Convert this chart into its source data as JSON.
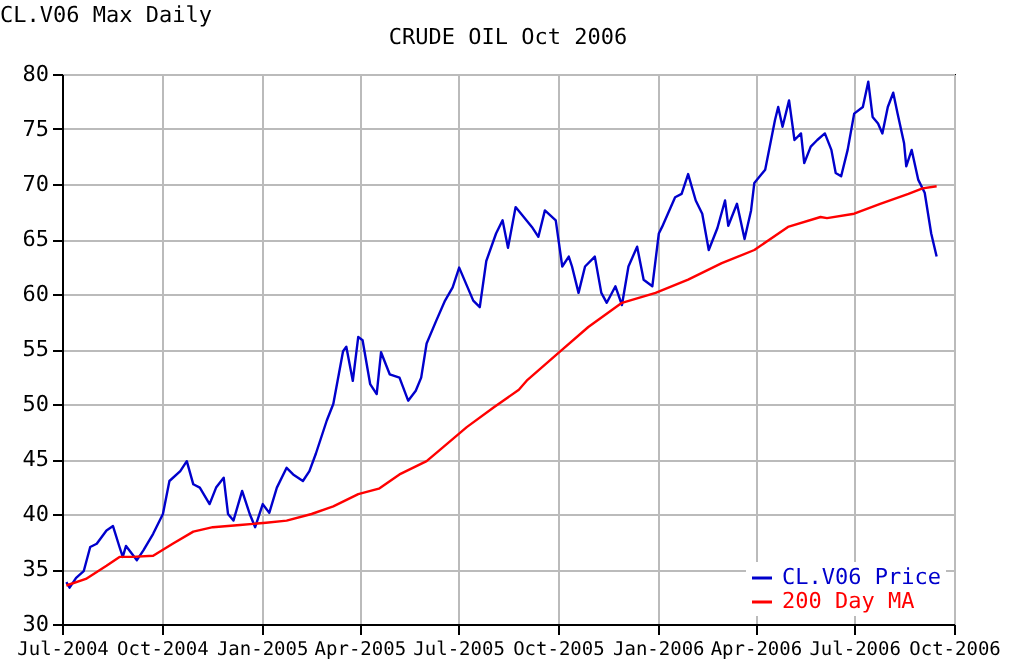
{
  "chart_data": {
    "type": "line",
    "title": "CRUDE OIL Oct 2006",
    "annotations": [
      "CL.V06 Max Daily"
    ],
    "xlim": [
      "2004-07-01",
      "2006-10-01"
    ],
    "xticks": [
      {
        "value": "2004-07-01",
        "label": "Jul-2004"
      },
      {
        "value": "2004-10-01",
        "label": "Oct-2004"
      },
      {
        "value": "2005-01-01",
        "label": "Jan-2005"
      },
      {
        "value": "2005-04-01",
        "label": "Apr-2005"
      },
      {
        "value": "2005-07-01",
        "label": "Jul-2005"
      },
      {
        "value": "2005-10-01",
        "label": "Oct-2005"
      },
      {
        "value": "2006-01-01",
        "label": "Jan-2006"
      },
      {
        "value": "2006-04-01",
        "label": "Apr-2006"
      },
      {
        "value": "2006-07-01",
        "label": "Jul-2006"
      },
      {
        "value": "2006-10-01",
        "label": "Oct-2006"
      }
    ],
    "ylim": [
      30,
      80
    ],
    "yticks": [
      30,
      35,
      40,
      45,
      50,
      55,
      60,
      65,
      70,
      75,
      80
    ],
    "grid": true,
    "legend": "bottom right",
    "series": [
      {
        "name": "CL.V06 Price",
        "color": "#0000cc",
        "x": [
          "2004-07-05",
          "2004-07-08",
          "2004-07-14",
          "2004-07-21",
          "2004-07-27",
          "2004-08-02",
          "2004-08-11",
          "2004-08-17",
          "2004-08-23",
          "2004-08-26",
          "2004-08-29",
          "2004-09-08",
          "2004-09-14",
          "2004-09-23",
          "2004-10-02",
          "2004-10-08",
          "2004-10-18",
          "2004-10-24",
          "2004-10-30",
          "2004-11-05",
          "2004-11-14",
          "2004-11-20",
          "2004-11-27",
          "2004-12-01",
          "2004-12-06",
          "2004-12-14",
          "2004-12-21",
          "2004-12-26",
          "2005-01-02",
          "2005-01-08",
          "2005-01-15",
          "2005-01-24",
          "2005-01-30",
          "2005-02-08",
          "2005-02-14",
          "2005-02-20",
          "2005-03-02",
          "2005-03-08",
          "2005-03-17",
          "2005-03-20",
          "2005-03-26",
          "2005-03-31",
          "2005-04-04",
          "2005-04-11",
          "2005-04-17",
          "2005-04-21",
          "2005-04-29",
          "2005-05-08",
          "2005-05-16",
          "2005-05-23",
          "2005-05-28",
          "2005-06-02",
          "2005-06-11",
          "2005-06-19",
          "2005-06-26",
          "2005-07-02",
          "2005-07-15",
          "2005-07-21",
          "2005-07-27",
          "2005-08-05",
          "2005-08-11",
          "2005-08-16",
          "2005-08-23",
          "2005-09-07",
          "2005-09-13",
          "2005-09-19",
          "2005-09-29",
          "2005-10-05",
          "2005-10-11",
          "2005-10-14",
          "2005-10-20",
          "2005-10-26",
          "2005-11-04",
          "2005-11-10",
          "2005-11-15",
          "2005-11-23",
          "2005-11-29",
          "2005-12-05",
          "2005-12-13",
          "2005-12-19",
          "2005-12-27",
          "2006-01-02",
          "2006-01-05",
          "2006-01-17",
          "2006-01-23",
          "2006-01-29",
          "2006-02-05",
          "2006-02-11",
          "2006-02-17",
          "2006-02-25",
          "2006-03-04",
          "2006-03-07",
          "2006-03-15",
          "2006-03-22",
          "2006-03-28",
          "2006-03-31",
          "2006-04-10",
          "2006-04-19",
          "2006-04-22",
          "2006-04-26",
          "2006-05-02",
          "2006-05-07",
          "2006-05-13",
          "2006-05-16",
          "2006-05-22",
          "2006-05-28",
          "2006-06-04",
          "2006-06-10",
          "2006-06-14",
          "2006-06-19",
          "2006-06-25",
          "2006-07-01",
          "2006-07-09",
          "2006-07-14",
          "2006-07-18",
          "2006-07-23",
          "2006-07-27",
          "2006-08-01",
          "2006-08-06",
          "2006-08-10",
          "2006-08-16",
          "2006-08-18",
          "2006-08-23",
          "2006-08-29",
          "2006-09-04",
          "2006-09-10",
          "2006-09-15"
        ],
        "values": [
          33.8,
          33.3,
          34.2,
          34.8,
          37.0,
          37.3,
          38.5,
          38.9,
          37.0,
          36.1,
          37.1,
          35.8,
          36.7,
          38.2,
          40.0,
          43.0,
          43.9,
          44.8,
          42.7,
          42.4,
          40.9,
          42.4,
          43.3,
          40.0,
          39.4,
          42.1,
          40.0,
          38.8,
          40.9,
          40.1,
          42.4,
          44.2,
          43.6,
          43.0,
          43.9,
          45.5,
          48.5,
          50.0,
          54.8,
          55.2,
          52.1,
          56.1,
          55.8,
          51.8,
          50.9,
          54.7,
          52.7,
          52.4,
          50.3,
          51.2,
          52.4,
          55.5,
          57.6,
          59.4,
          60.6,
          62.4,
          59.4,
          58.8,
          63.0,
          65.5,
          66.7,
          64.2,
          67.9,
          66.1,
          65.2,
          67.6,
          66.7,
          62.5,
          63.4,
          62.5,
          60.1,
          62.5,
          63.4,
          60.1,
          59.2,
          60.7,
          59.0,
          62.5,
          64.3,
          61.3,
          60.7,
          65.5,
          66.1,
          68.8,
          69.1,
          70.9,
          68.5,
          67.3,
          64.0,
          66.0,
          68.5,
          66.2,
          68.2,
          65.0,
          67.6,
          70.1,
          71.3,
          75.8,
          77.0,
          75.2,
          77.6,
          74.0,
          74.6,
          71.9,
          73.4,
          74.0,
          74.6,
          73.1,
          71.0,
          70.7,
          73.1,
          76.4,
          77.0,
          79.3,
          76.1,
          75.5,
          74.6,
          77.0,
          78.3,
          76.4,
          73.7,
          71.6,
          73.1,
          70.4,
          69.2,
          65.5,
          63.4
        ]
      },
      {
        "name": "200 Day MA",
        "color": "#ff0000",
        "x": [
          "2004-07-05",
          "2004-07-23",
          "2004-08-11",
          "2004-08-23",
          "2004-09-04",
          "2004-09-23",
          "2004-10-11",
          "2004-10-30",
          "2004-11-17",
          "2004-12-12",
          "2005-01-05",
          "2005-01-24",
          "2005-02-16",
          "2005-03-08",
          "2005-03-31",
          "2005-04-19",
          "2005-05-08",
          "2005-06-02",
          "2005-06-14",
          "2005-07-09",
          "2005-08-03",
          "2005-08-26",
          "2005-09-03",
          "2005-10-01",
          "2005-10-29",
          "2005-11-29",
          "2005-12-30",
          "2006-01-29",
          "2006-03-01",
          "2006-03-31",
          "2006-05-01",
          "2006-05-31",
          "2006-06-06",
          "2006-07-01",
          "2006-07-25",
          "2006-08-20",
          "2006-09-02",
          "2006-09-15"
        ],
        "values": [
          33.5,
          34.1,
          35.3,
          36.1,
          36.1,
          36.2,
          37.3,
          38.4,
          38.8,
          39.0,
          39.2,
          39.4,
          40.0,
          40.7,
          41.8,
          42.3,
          43.6,
          44.8,
          45.8,
          47.9,
          49.7,
          51.3,
          52.2,
          54.6,
          57.0,
          59.2,
          60.1,
          61.3,
          62.8,
          64.0,
          66.1,
          67.0,
          66.9,
          67.3,
          68.2,
          69.1,
          69.6,
          69.8
        ]
      }
    ]
  }
}
